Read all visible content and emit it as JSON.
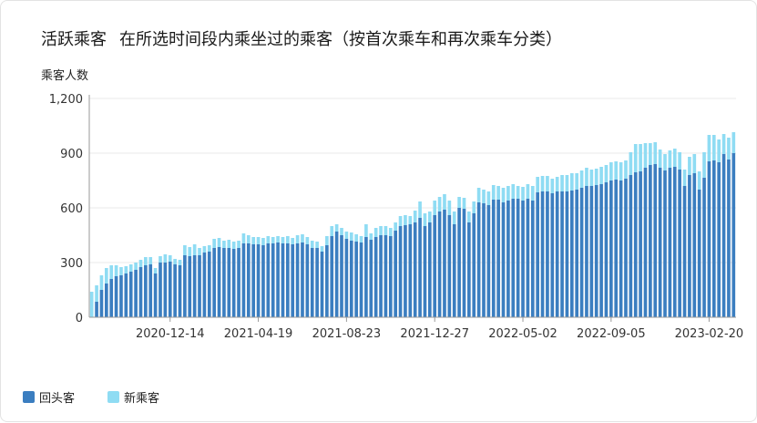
{
  "header": {
    "title": "活跃乘客",
    "subtitle": "在所选时间段内乘坐过的乘客（按首次乘车和再次乘车分类）"
  },
  "colors": {
    "returning": "#3b7ec0",
    "new": "#8fdcf3",
    "grid": "#e8e8e8",
    "axis": "#9a9a9a"
  },
  "chart_data": {
    "type": "bar",
    "stacked": true,
    "ylabel": "乘客人数",
    "xlabel": "",
    "ylim": [
      0,
      1200
    ],
    "yticks": [
      0,
      300,
      600,
      900,
      1200
    ],
    "ytick_labels": [
      "0",
      "300",
      "600",
      "900",
      "1,200"
    ],
    "xtick_labels": [
      {
        "label": "2020-12-14",
        "index": 16
      },
      {
        "label": "2021-04-19",
        "index": 34
      },
      {
        "label": "2021-08-23",
        "index": 52
      },
      {
        "label": "2021-12-27",
        "index": 70
      },
      {
        "label": "2022-05-02",
        "index": 88
      },
      {
        "label": "2022-09-05",
        "index": 106
      },
      {
        "label": "2023-02-20",
        "index": 126
      }
    ],
    "grid": true,
    "legend_position": "bottom-left",
    "series": [
      {
        "name": "回头客",
        "values": [
          0,
          85,
          150,
          185,
          210,
          225,
          230,
          240,
          250,
          260,
          275,
          285,
          290,
          240,
          300,
          300,
          305,
          290,
          285,
          340,
          335,
          340,
          340,
          355,
          360,
          380,
          385,
          380,
          380,
          375,
          380,
          405,
          405,
          400,
          400,
          395,
          405,
          405,
          410,
          405,
          405,
          400,
          405,
          410,
          400,
          380,
          380,
          360,
          395,
          445,
          470,
          450,
          430,
          420,
          415,
          410,
          440,
          425,
          440,
          450,
          450,
          445,
          475,
          500,
          505,
          510,
          520,
          545,
          500,
          520,
          560,
          580,
          590,
          560,
          510,
          600,
          595,
          520,
          570,
          630,
          625,
          615,
          645,
          645,
          630,
          640,
          650,
          650,
          640,
          650,
          640,
          685,
          690,
          690,
          680,
          690,
          690,
          690,
          695,
          700,
          710,
          720,
          720,
          725,
          730,
          740,
          750,
          755,
          750,
          760,
          780,
          795,
          800,
          820,
          835,
          840,
          820,
          805,
          820,
          825,
          810,
          720,
          780,
          790,
          700,
          765,
          855,
          860,
          850,
          895,
          865,
          900
        ]
      },
      {
        "name": "新乘客",
        "values": [
          140,
          90,
          80,
          85,
          75,
          60,
          45,
          40,
          40,
          40,
          40,
          45,
          40,
          30,
          35,
          45,
          35,
          30,
          30,
          55,
          50,
          60,
          40,
          35,
          35,
          50,
          50,
          40,
          45,
          40,
          40,
          55,
          45,
          40,
          40,
          40,
          40,
          35,
          35,
          35,
          40,
          35,
          45,
          45,
          40,
          40,
          35,
          30,
          50,
          55,
          40,
          40,
          40,
          45,
          40,
          35,
          70,
          35,
          50,
          50,
          50,
          45,
          45,
          55,
          55,
          45,
          65,
          90,
          70,
          60,
          80,
          80,
          85,
          80,
          70,
          60,
          60,
          60,
          65,
          80,
          75,
          75,
          80,
          75,
          80,
          80,
          80,
          70,
          75,
          80,
          80,
          85,
          85,
          85,
          80,
          80,
          90,
          90,
          95,
          90,
          95,
          100,
          90,
          90,
          95,
          95,
          100,
          100,
          100,
          100,
          125,
          155,
          150,
          135,
          120,
          120,
          100,
          90,
          95,
          100,
          95,
          90,
          100,
          105,
          100,
          140,
          145,
          140,
          125,
          110,
          120,
          115
        ]
      }
    ]
  }
}
